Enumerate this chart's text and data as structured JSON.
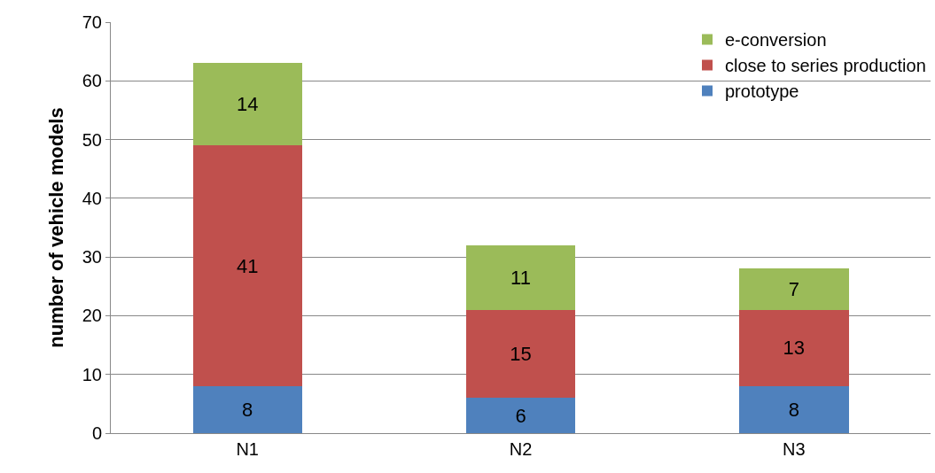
{
  "chart_data": {
    "type": "bar",
    "stacked": true,
    "ylabel": "number of vehicle models",
    "categories": [
      "N1",
      "N2",
      "N3"
    ],
    "series": [
      {
        "name": "prototype",
        "color": "#4f81bd",
        "values": [
          8,
          6,
          8
        ]
      },
      {
        "name": "close to series production",
        "color": "#c0504d",
        "values": [
          41,
          15,
          13
        ]
      },
      {
        "name": "e-conversion",
        "color": "#9bbb59",
        "values": [
          14,
          11,
          7
        ]
      }
    ],
    "ylim": [
      0,
      70
    ],
    "yticks": [
      0,
      10,
      20,
      30,
      40,
      50,
      60,
      70
    ],
    "grid": "y",
    "legend": "top right",
    "data_labels": true
  }
}
